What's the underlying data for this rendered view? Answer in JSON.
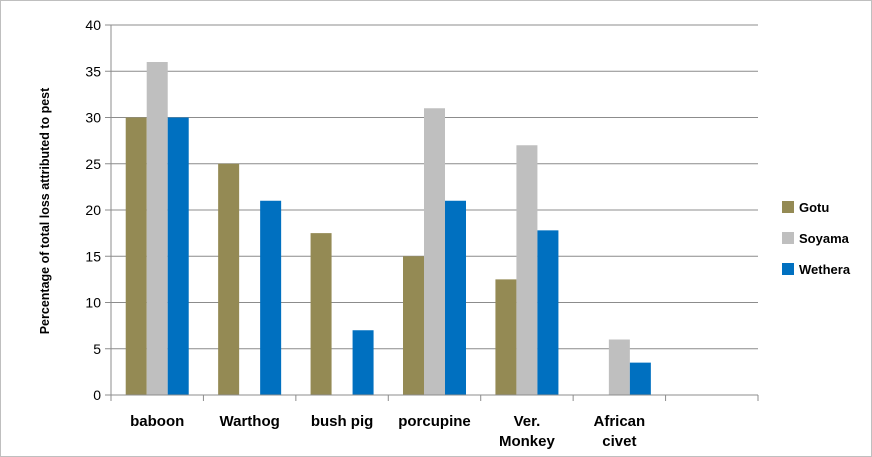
{
  "chart_data": {
    "type": "bar",
    "categories": [
      "baboon",
      "Warthog",
      "bush pig",
      "porcupine",
      "Ver. Monkey",
      "African civet",
      ""
    ],
    "category_label_lines": [
      [
        "baboon"
      ],
      [
        "Warthog"
      ],
      [
        "bush pig"
      ],
      [
        "porcupine"
      ],
      [
        "Ver.",
        "Monkey"
      ],
      [
        "African",
        "civet"
      ],
      []
    ],
    "series": [
      {
        "name": "Gotu",
        "color": "#948A54",
        "values": [
          30,
          25,
          17.5,
          15,
          12.5,
          null,
          null
        ]
      },
      {
        "name": "Soyama",
        "color": "#BFBFBF",
        "values": [
          36,
          null,
          null,
          31,
          27,
          6,
          null
        ]
      },
      {
        "name": "Wethera",
        "color": "#0070C0",
        "values": [
          30,
          21,
          7,
          21,
          17.8,
          3.5,
          null
        ]
      }
    ],
    "title": "",
    "xlabel": "",
    "ylabel": "Percentage of total loss attributed to pest",
    "ylim": [
      0,
      40
    ],
    "yticks": [
      0,
      5,
      10,
      15,
      20,
      25,
      30,
      35,
      40
    ],
    "grid": true,
    "legend_position": "right"
  }
}
